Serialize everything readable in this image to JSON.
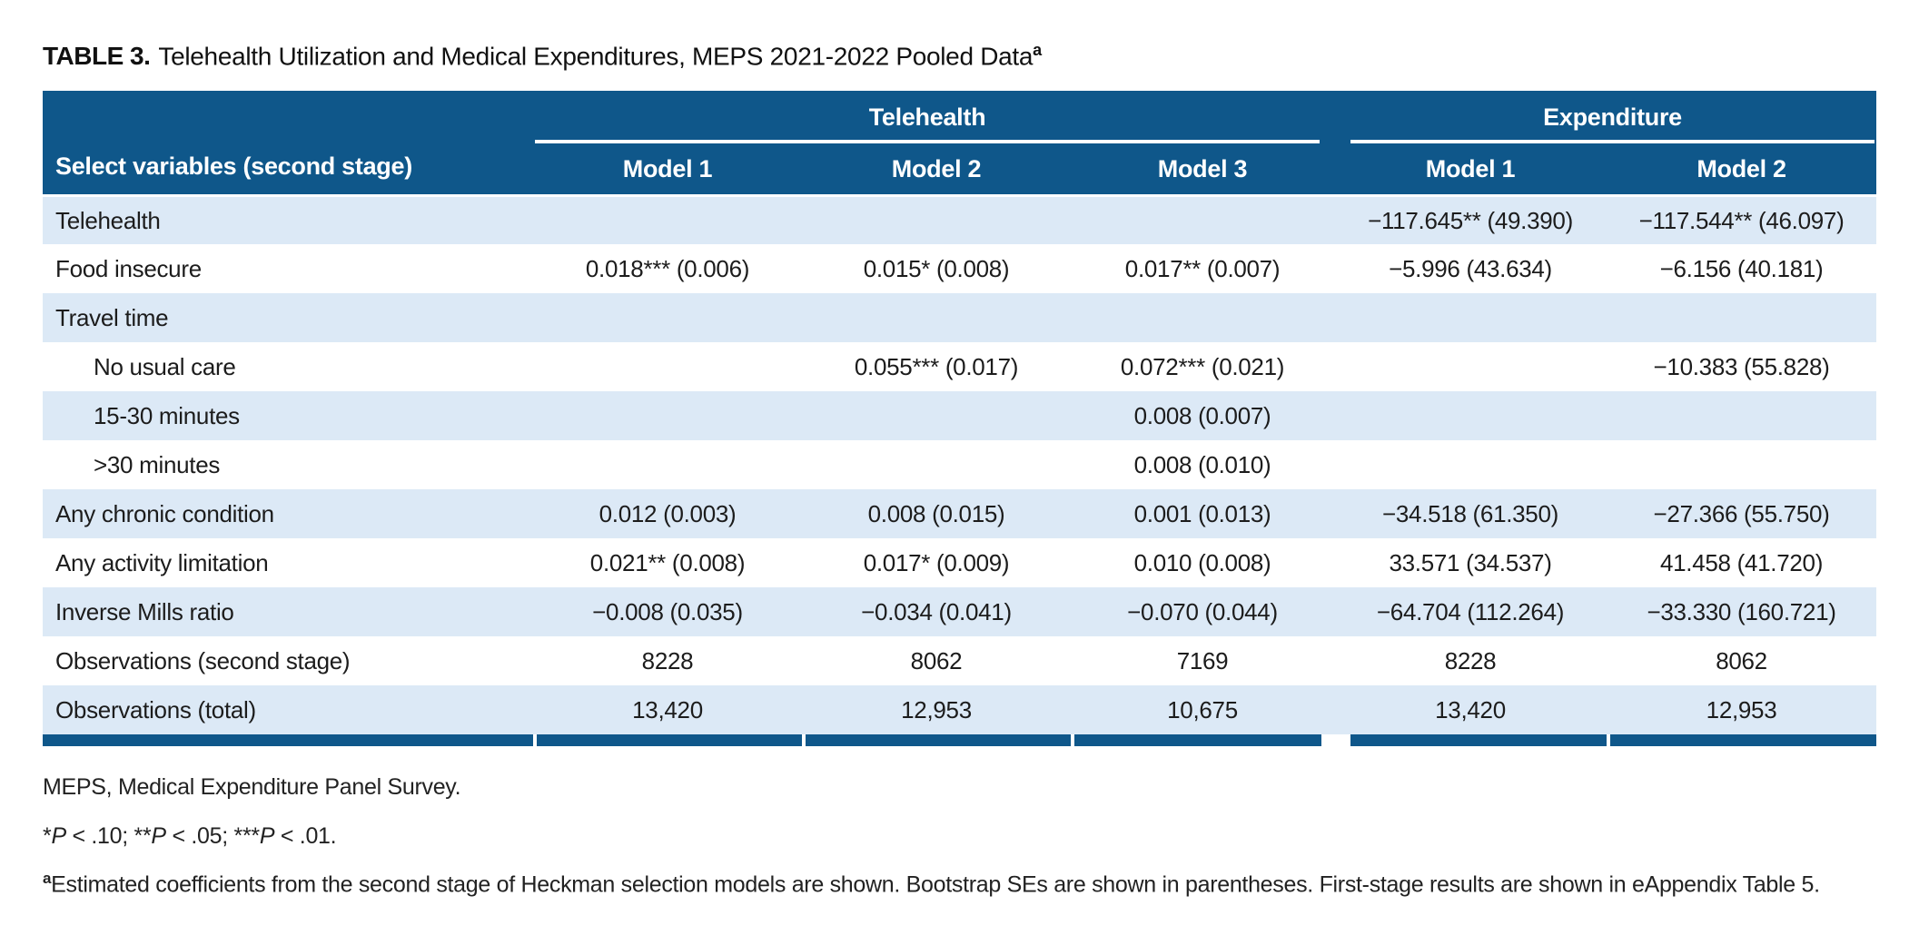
{
  "title": {
    "label": "TABLE 3.",
    "text": "Telehealth Utilization and Medical Expenditures, MEPS 2021-2022 Pooled Data",
    "superscript": "a"
  },
  "colors": {
    "header_blue": "#0f578a",
    "row_alt_blue": "#dce9f6",
    "text": "#1c1c1c"
  },
  "table": {
    "stub_header": "Select variables (second stage)",
    "group_headers": [
      {
        "label": "Telehealth",
        "span": 3
      },
      {
        "label": "Expenditure",
        "span": 2
      }
    ],
    "column_headers": [
      "Model 1",
      "Model 2",
      "Model 3",
      "Model 1",
      "Model 2"
    ],
    "rows": [
      {
        "label": "Telehealth",
        "indent": false,
        "cells": [
          "",
          "",
          "",
          "−117.645** (49.390)",
          "−117.544** (46.097)"
        ]
      },
      {
        "label": "Food insecure",
        "indent": false,
        "cells": [
          "0.018*** (0.006)",
          "0.015* (0.008)",
          "0.017** (0.007)",
          "−5.996 (43.634)",
          "−6.156 (40.181)"
        ]
      },
      {
        "label": "Travel time",
        "indent": false,
        "cells": [
          "",
          "",
          "",
          "",
          ""
        ]
      },
      {
        "label": "No usual care",
        "indent": true,
        "cells": [
          "",
          "0.055*** (0.017)",
          "0.072*** (0.021)",
          "",
          "−10.383 (55.828)"
        ]
      },
      {
        "label": "15-30 minutes",
        "indent": true,
        "cells": [
          "",
          "",
          "0.008 (0.007)",
          "",
          ""
        ]
      },
      {
        "label": ">30 minutes",
        "indent": true,
        "cells": [
          "",
          "",
          "0.008 (0.010)",
          "",
          ""
        ]
      },
      {
        "label": "Any chronic condition",
        "indent": false,
        "cells": [
          "0.012 (0.003)",
          "0.008 (0.015)",
          "0.001 (0.013)",
          "−34.518 (61.350)",
          "−27.366 (55.750)"
        ]
      },
      {
        "label": "Any activity limitation",
        "indent": false,
        "cells": [
          "0.021** (0.008)",
          "0.017* (0.009)",
          "0.010 (0.008)",
          "33.571 (34.537)",
          "41.458 (41.720)"
        ]
      },
      {
        "label": "Inverse Mills ratio",
        "indent": false,
        "cells": [
          "−0.008 (0.035)",
          "−0.034 (0.041)",
          "−0.070 (0.044)",
          "−64.704 (112.264)",
          "−33.330 (160.721)"
        ]
      },
      {
        "label": "Observations (second stage)",
        "indent": false,
        "cells": [
          "8228",
          "8062",
          "7169",
          "8228",
          "8062"
        ]
      },
      {
        "label": "Observations (total)",
        "indent": false,
        "cells": [
          "13,420",
          "12,953",
          "10,675",
          "13,420",
          "12,953"
        ]
      }
    ]
  },
  "footnotes": {
    "line1": "MEPS, Medical Expenditure Panel Survey.",
    "line2_parts": [
      "*",
      "P",
      " < .10; **",
      "P",
      " < .05; ***",
      "P",
      " < .01."
    ],
    "note_a_sup": "a",
    "note_a_text": "Estimated coefficients from the second stage of Heckman selection models are shown. Bootstrap SEs are shown in parentheses. First-stage results are shown in eAppendix Table 5."
  }
}
